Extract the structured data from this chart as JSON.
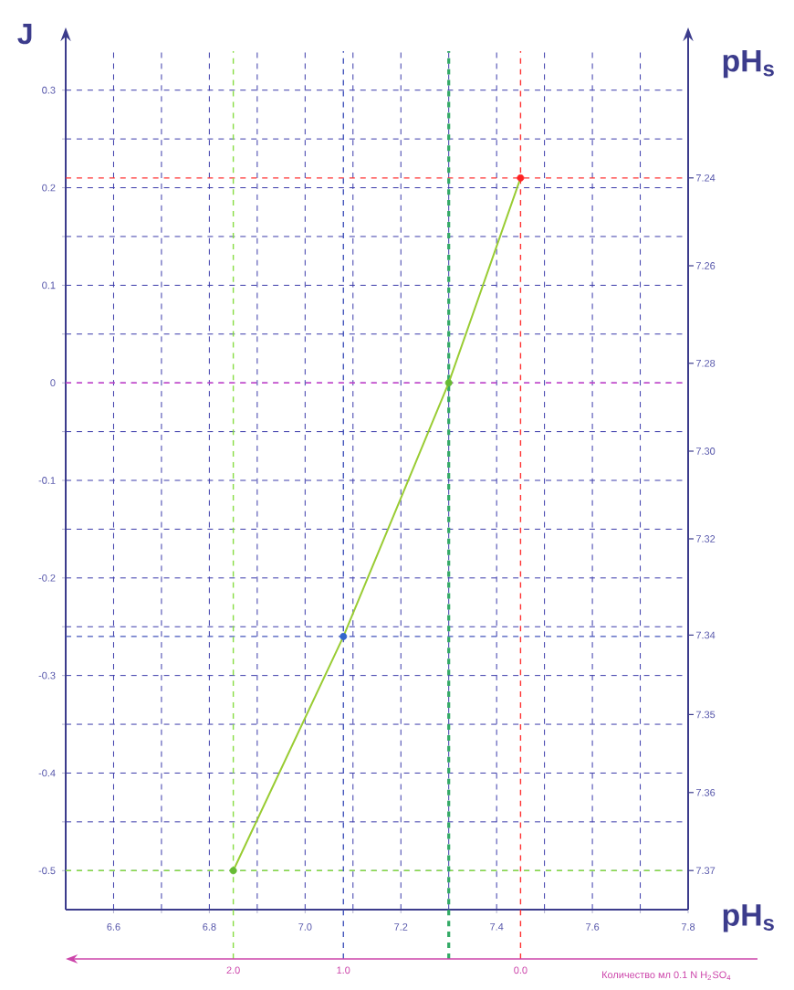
{
  "chart_data": {
    "type": "line",
    "xlabel": "pH$_{s}$",
    "ylabel": "J",
    "y2label": "pH$_{s}$",
    "x2label": "Количество мл 0.1 N H$_{2}$SO$_{4}$",
    "xlim": [
      6.5,
      7.8
    ],
    "ylim": [
      -0.54,
      0.34
    ],
    "xticks": [
      6.6,
      {
        "value": 6.7,
        "label": null
      },
      6.8,
      {
        "value": 6.9,
        "label": null
      },
      {
        "value": 7.0,
        "label": "7.0"
      },
      {
        "value": 7.1,
        "label": null
      },
      7.2,
      {
        "value": 7.3,
        "label": null
      },
      7.4,
      {
        "value": 7.5,
        "label": null
      },
      7.6,
      {
        "value": 7.7,
        "label": null
      },
      7.8
    ],
    "yticks": [
      -0.5,
      {
        "value": -0.45,
        "label": null
      },
      -0.4,
      {
        "value": -0.35,
        "label": null
      },
      -0.3,
      {
        "value": -0.25,
        "label": null
      },
      -0.2,
      {
        "value": -0.15,
        "label": null
      },
      -0.1,
      {
        "value": -0.05,
        "label": null
      },
      0,
      {
        "value": 0.05,
        "label": null
      },
      0.1,
      {
        "value": 0.15,
        "label": null
      },
      0.2,
      {
        "value": 0.25,
        "label": null
      },
      0.3
    ],
    "annotations": [
      "7.24",
      "7.26",
      "7.28",
      "7.30",
      "7.32",
      "7.34",
      "7.35",
      "7.36",
      "7.37",
      "2.0",
      "1.0",
      "0.0"
    ],
    "x": [
      6.85,
      7.08,
      7.3,
      7.45
    ],
    "series": [
      {
        "values": [
          -0.5,
          -0.26,
          0,
          0.21
        ],
        "color": "#99cc33",
        "colors": [
          "#66bb33",
          "#3366cc",
          "#66bb33",
          "#ff2222"
        ]
      }
    ],
    "marker": "circle",
    "grid": true,
    "ref_lines": [
      {
        "axis": "y",
        "value": 0.21,
        "color": "#ff3333",
        "line_style": "dashed"
      },
      {
        "axis": "y",
        "value": 0,
        "color": "#cc44cc",
        "line_style": "dashed"
      },
      {
        "axis": "y",
        "value": -0.26,
        "color": "#4455bb",
        "line_style": "dashed"
      },
      {
        "axis": "y",
        "value": -0.5,
        "color": "#88dd44",
        "line_style": "dashed"
      },
      {
        "axis": "x",
        "value": 7.45,
        "color": "#ff3333",
        "line_style": "dashed"
      },
      {
        "axis": "x",
        "value": 7.3,
        "color": "#33aa66",
        "line_style": "dashed"
      },
      {
        "axis": "x",
        "value": 7.08,
        "color": "#4455bb",
        "line_style": "dashed"
      },
      {
        "axis": "x",
        "value": 6.85,
        "color": "#88dd44",
        "line_style": "dashed"
      }
    ]
  }
}
